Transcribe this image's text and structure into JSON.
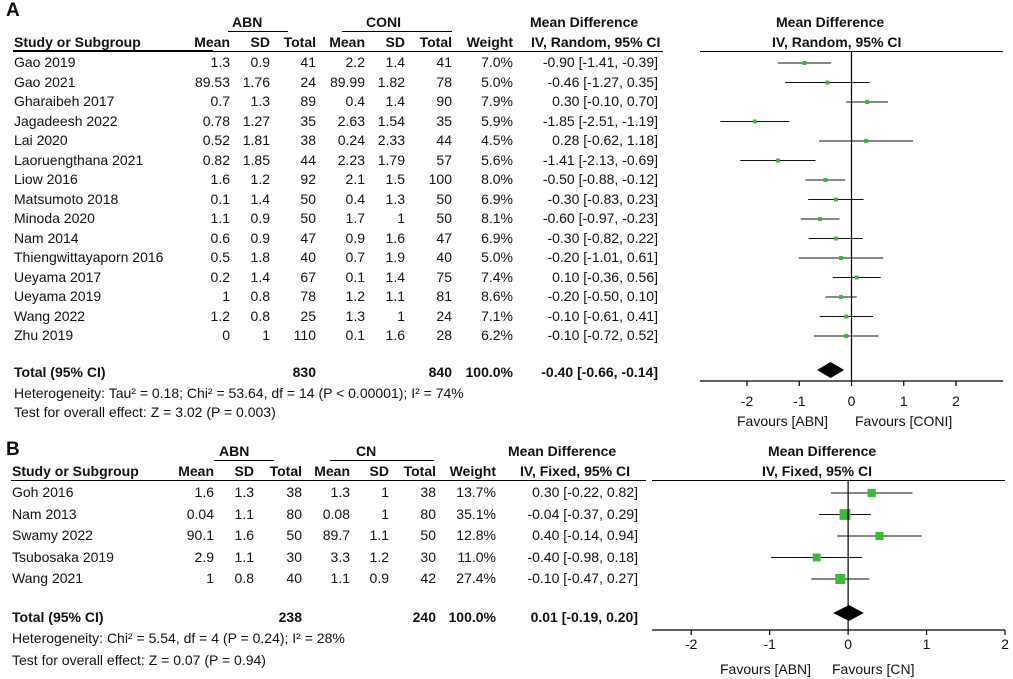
{
  "panelA": {
    "letter": "A",
    "group1": "ABN",
    "group2": "CONI",
    "md_title": "Mean Difference",
    "md_method": "IV, Random, 95% CI",
    "headers": [
      "Study or Subgroup",
      "Mean",
      "SD",
      "Total",
      "Mean",
      "SD",
      "Total",
      "Weight"
    ],
    "studies": [
      {
        "name": "Gao 2019",
        "m1": "1.3",
        "sd1": "0.9",
        "n1": "41",
        "m2": "2.2",
        "sd2": "1.4",
        "n2": "41",
        "w": "7.0%",
        "ci": "-0.90 [-1.41, -0.39]",
        "md": -0.9,
        "lo": -1.41,
        "hi": -0.39
      },
      {
        "name": "Gao 2021",
        "m1": "89.53",
        "sd1": "1.76",
        "n1": "24",
        "m2": "89.99",
        "sd2": "1.82",
        "n2": "78",
        "w": "5.0%",
        "ci": "-0.46 [-1.27, 0.35]",
        "md": -0.46,
        "lo": -1.27,
        "hi": 0.35
      },
      {
        "name": "Gharaibeh 2017",
        "m1": "0.7",
        "sd1": "1.3",
        "n1": "89",
        "m2": "0.4",
        "sd2": "1.4",
        "n2": "90",
        "w": "7.9%",
        "ci": "0.30 [-0.10, 0.70]",
        "md": 0.3,
        "lo": -0.1,
        "hi": 0.7
      },
      {
        "name": "Jagadeesh 2022",
        "m1": "0.78",
        "sd1": "1.27",
        "n1": "35",
        "m2": "2.63",
        "sd2": "1.54",
        "n2": "35",
        "w": "5.9%",
        "ci": "-1.85 [-2.51, -1.19]",
        "md": -1.85,
        "lo": -2.51,
        "hi": -1.19
      },
      {
        "name": "Lai 2020",
        "m1": "0.52",
        "sd1": "1.81",
        "n1": "38",
        "m2": "0.24",
        "sd2": "2.33",
        "n2": "44",
        "w": "4.5%",
        "ci": "0.28 [-0.62, 1.18]",
        "md": 0.28,
        "lo": -0.62,
        "hi": 1.18
      },
      {
        "name": "Laoruengthana 2021",
        "m1": "0.82",
        "sd1": "1.85",
        "n1": "44",
        "m2": "2.23",
        "sd2": "1.79",
        "n2": "57",
        "w": "5.6%",
        "ci": "-1.41 [-2.13, -0.69]",
        "md": -1.41,
        "lo": -2.13,
        "hi": -0.69
      },
      {
        "name": "Liow 2016",
        "m1": "1.6",
        "sd1": "1.2",
        "n1": "92",
        "m2": "2.1",
        "sd2": "1.5",
        "n2": "100",
        "w": "8.0%",
        "ci": "-0.50 [-0.88, -0.12]",
        "md": -0.5,
        "lo": -0.88,
        "hi": -0.12
      },
      {
        "name": "Matsumoto 2018",
        "m1": "0.1",
        "sd1": "1.4",
        "n1": "50",
        "m2": "0.4",
        "sd2": "1.3",
        "n2": "50",
        "w": "6.9%",
        "ci": "-0.30 [-0.83, 0.23]",
        "md": -0.3,
        "lo": -0.83,
        "hi": 0.23
      },
      {
        "name": "Minoda 2020",
        "m1": "1.1",
        "sd1": "0.9",
        "n1": "50",
        "m2": "1.7",
        "sd2": "1",
        "n2": "50",
        "w": "8.1%",
        "ci": "-0.60 [-0.97, -0.23]",
        "md": -0.6,
        "lo": -0.97,
        "hi": -0.23
      },
      {
        "name": "Nam 2014",
        "m1": "0.6",
        "sd1": "0.9",
        "n1": "47",
        "m2": "0.9",
        "sd2": "1.6",
        "n2": "47",
        "w": "6.9%",
        "ci": "-0.30 [-0.82, 0.22]",
        "md": -0.3,
        "lo": -0.82,
        "hi": 0.22
      },
      {
        "name": "Thiengwittayaporn 2016",
        "m1": "0.5",
        "sd1": "1.8",
        "n1": "40",
        "m2": "0.7",
        "sd2": "1.9",
        "n2": "40",
        "w": "5.0%",
        "ci": "-0.20 [-1.01, 0.61]",
        "md": -0.2,
        "lo": -1.01,
        "hi": 0.61
      },
      {
        "name": "Ueyama 2017",
        "m1": "0.2",
        "sd1": "1.4",
        "n1": "67",
        "m2": "0.1",
        "sd2": "1.4",
        "n2": "75",
        "w": "7.4%",
        "ci": "0.10 [-0.36, 0.56]",
        "md": 0.1,
        "lo": -0.36,
        "hi": 0.56
      },
      {
        "name": "Ueyama 2019",
        "m1": "1",
        "sd1": "0.8",
        "n1": "78",
        "m2": "1.2",
        "sd2": "1.1",
        "n2": "81",
        "w": "8.6%",
        "ci": "-0.20 [-0.50, 0.10]",
        "md": -0.2,
        "lo": -0.5,
        "hi": 0.1
      },
      {
        "name": "Wang 2022",
        "m1": "1.2",
        "sd1": "0.8",
        "n1": "25",
        "m2": "1.3",
        "sd2": "1",
        "n2": "24",
        "w": "7.1%",
        "ci": "-0.10 [-0.61, 0.41]",
        "md": -0.1,
        "lo": -0.61,
        "hi": 0.41
      },
      {
        "name": "Zhu 2019",
        "m1": "0",
        "sd1": "1",
        "n1": "110",
        "m2": "0.1",
        "sd2": "1.6",
        "n2": "28",
        "w": "6.2%",
        "ci": "-0.10 [-0.72, 0.52]",
        "md": -0.1,
        "lo": -0.72,
        "hi": 0.52
      }
    ],
    "total": {
      "label": "Total (95% CI)",
      "n1": "830",
      "n2": "840",
      "w": "100.0%",
      "ci": "-0.40 [-0.66, -0.14]",
      "md": -0.4,
      "lo": -0.66,
      "hi": -0.14
    },
    "heterogeneity": "Heterogeneity: Tau² = 0.18; Chi² = 53.64, df = 14 (P < 0.00001); I² = 74%",
    "overall": "Test for overall effect: Z = 3.02 (P = 0.003)",
    "ticks": [
      -2,
      -1,
      0,
      1,
      2
    ],
    "xlim": [
      -2.9,
      2.9
    ],
    "favours_left": "Favours [ABN]",
    "favours_right": "Favours [CONI]"
  },
  "panelB": {
    "letter": "B",
    "group1": "ABN",
    "group2": "CN",
    "md_title": "Mean Difference",
    "md_method": "IV, Fixed, 95% CI",
    "headers": [
      "Study or Subgroup",
      "Mean",
      "SD",
      "Total",
      "Mean",
      "SD",
      "Total",
      "Weight"
    ],
    "studies": [
      {
        "name": "Goh 2016",
        "m1": "1.6",
        "sd1": "1.3",
        "n1": "38",
        "m2": "1.3",
        "sd2": "1",
        "n2": "38",
        "w": "13.7%",
        "ci": "0.30 [-0.22, 0.82]",
        "md": 0.3,
        "lo": -0.22,
        "hi": 0.82,
        "wt": 13.7
      },
      {
        "name": "Nam 2013",
        "m1": "0.04",
        "sd1": "1.1",
        "n1": "80",
        "m2": "0.08",
        "sd2": "1",
        "n2": "80",
        "w": "35.1%",
        "ci": "-0.04 [-0.37, 0.29]",
        "md": -0.04,
        "lo": -0.37,
        "hi": 0.29,
        "wt": 35.1
      },
      {
        "name": "Swamy 2022",
        "m1": "90.1",
        "sd1": "1.6",
        "n1": "50",
        "m2": "89.7",
        "sd2": "1.1",
        "n2": "50",
        "w": "12.8%",
        "ci": "0.40 [-0.14, 0.94]",
        "md": 0.4,
        "lo": -0.14,
        "hi": 0.94,
        "wt": 12.8
      },
      {
        "name": "Tsubosaka 2019",
        "m1": "2.9",
        "sd1": "1.1",
        "n1": "30",
        "m2": "3.3",
        "sd2": "1.2",
        "n2": "30",
        "w": "11.0%",
        "ci": "-0.40 [-0.98, 0.18]",
        "md": -0.4,
        "lo": -0.98,
        "hi": 0.18,
        "wt": 11.0
      },
      {
        "name": "Wang 2021",
        "m1": "1",
        "sd1": "0.8",
        "n1": "40",
        "m2": "1.1",
        "sd2": "0.9",
        "n2": "42",
        "w": "27.4%",
        "ci": "-0.10 [-0.47, 0.27]",
        "md": -0.1,
        "lo": -0.47,
        "hi": 0.27,
        "wt": 27.4
      }
    ],
    "total": {
      "label": "Total (95% CI)",
      "n1": "238",
      "n2": "240",
      "w": "100.0%",
      "ci": "0.01 [-0.19, 0.20]",
      "md": 0.01,
      "lo": -0.19,
      "hi": 0.2
    },
    "heterogeneity": "Heterogeneity: Chi² = 5.54, df = 4 (P = 0.24); I² = 28%",
    "overall": "Test for overall effect: Z = 0.07 (P = 0.94)",
    "ticks": [
      -2,
      -1,
      0,
      1,
      2
    ],
    "xlim": [
      -2.5,
      2.0
    ],
    "favours_left": "Favours [ABN]",
    "favours_right": "Favours [CN]"
  },
  "chart_data": [
    {
      "type": "forest",
      "title": "A",
      "measure": "Mean Difference IV, Random, 95% CI",
      "categories": [
        "Gao 2019",
        "Gao 2021",
        "Gharaibeh 2017",
        "Jagadeesh 2022",
        "Lai 2020",
        "Laoruengthana 2021",
        "Liow 2016",
        "Matsumoto 2018",
        "Minoda 2020",
        "Nam 2014",
        "Thiengwittayaporn 2016",
        "Ueyama 2017",
        "Ueyama 2019",
        "Wang 2022",
        "Zhu 2019"
      ],
      "values": [
        -0.9,
        -0.46,
        0.3,
        -1.85,
        0.28,
        -1.41,
        -0.5,
        -0.3,
        -0.6,
        -0.3,
        -0.2,
        0.1,
        -0.2,
        -0.1,
        -0.1
      ],
      "pooled": -0.4,
      "xlim": [
        -2.9,
        2.9
      ],
      "xticks": [
        -2,
        -1,
        0,
        1,
        2
      ]
    },
    {
      "type": "forest",
      "title": "B",
      "measure": "Mean Difference IV, Fixed, 95% CI",
      "categories": [
        "Goh 2016",
        "Nam 2013",
        "Swamy 2022",
        "Tsubosaka 2019",
        "Wang 2021"
      ],
      "values": [
        0.3,
        -0.04,
        0.4,
        -0.4,
        -0.1
      ],
      "pooled": 0.01,
      "xlim": [
        -2.5,
        2.0
      ],
      "xticks": [
        -2,
        -1,
        0,
        1,
        2
      ]
    }
  ]
}
